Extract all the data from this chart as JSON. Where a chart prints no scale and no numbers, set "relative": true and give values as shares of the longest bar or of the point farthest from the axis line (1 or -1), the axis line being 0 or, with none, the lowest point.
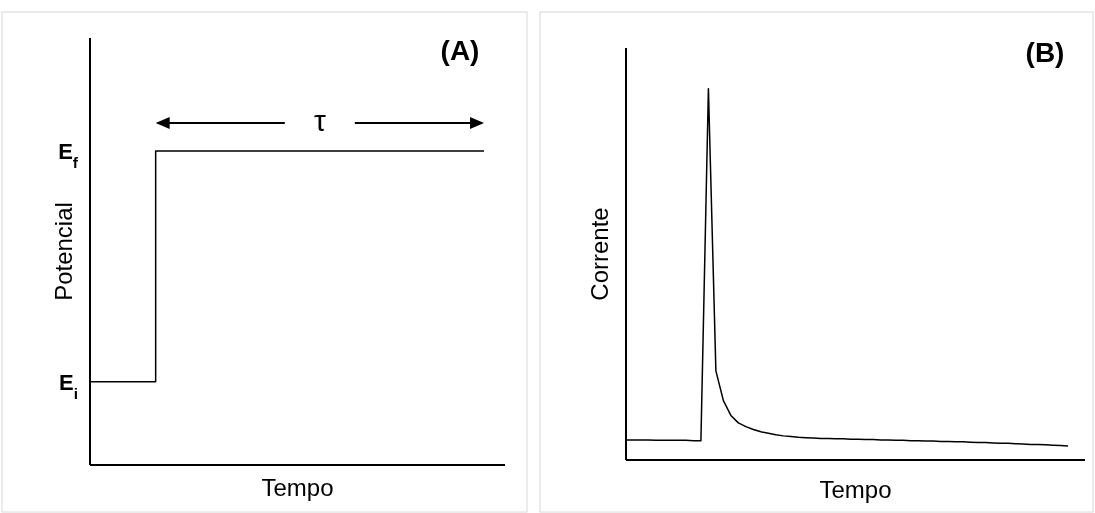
{
  "chart_data": [
    {
      "type": "step",
      "title": "(A)",
      "xlabel": "Tempo",
      "ylabel": "Potencial",
      "relative": true,
      "color": "#000000",
      "categories": [
        null,
        null,
        null,
        null,
        null,
        null,
        null
      ],
      "values": [
        0.265,
        1,
        1,
        1,
        1,
        1,
        1
      ],
      "annotations": [
        "E$_{i}$",
        "E$_{f}$",
        "τ"
      ]
    },
    {
      "type": "line",
      "title": "(B)",
      "xlabel": "Tempo",
      "ylabel": "Corrente",
      "relative": true,
      "color": "#000000",
      "categories": [
        null,
        null,
        null,
        null,
        null,
        null,
        null,
        null,
        null,
        null,
        null,
        null,
        null,
        null,
        null,
        null,
        null,
        null,
        null,
        null,
        null,
        null,
        null,
        null,
        null,
        null,
        null,
        null,
        null,
        null,
        null,
        null,
        null,
        null,
        null,
        null,
        null,
        null,
        null,
        null,
        null,
        null,
        null,
        null,
        null,
        null,
        null,
        null,
        null,
        null,
        null,
        null,
        null,
        null,
        null,
        null,
        null,
        null,
        null,
        null
      ],
      "values": [
        0.054,
        0.054,
        0.054,
        0.054,
        0.053,
        0.053,
        0.053,
        0.053,
        0.053,
        0.052,
        0.052,
        1,
        0.24,
        0.16,
        0.12,
        0.1,
        0.09,
        0.082,
        0.076,
        0.072,
        0.068,
        0.065,
        0.063,
        0.061,
        0.06,
        0.059,
        0.058,
        0.058,
        0.057,
        0.057,
        0.056,
        0.056,
        0.055,
        0.055,
        0.054,
        0.054,
        0.053,
        0.053,
        0.052,
        0.052,
        0.051,
        0.051,
        0.05,
        0.05,
        0.049,
        0.049,
        0.048,
        0.047,
        0.047,
        0.046,
        0.045,
        0.045,
        0.044,
        0.043,
        0.042,
        0.042,
        0.041,
        0.04,
        0.039,
        0.038
      ]
    }
  ]
}
